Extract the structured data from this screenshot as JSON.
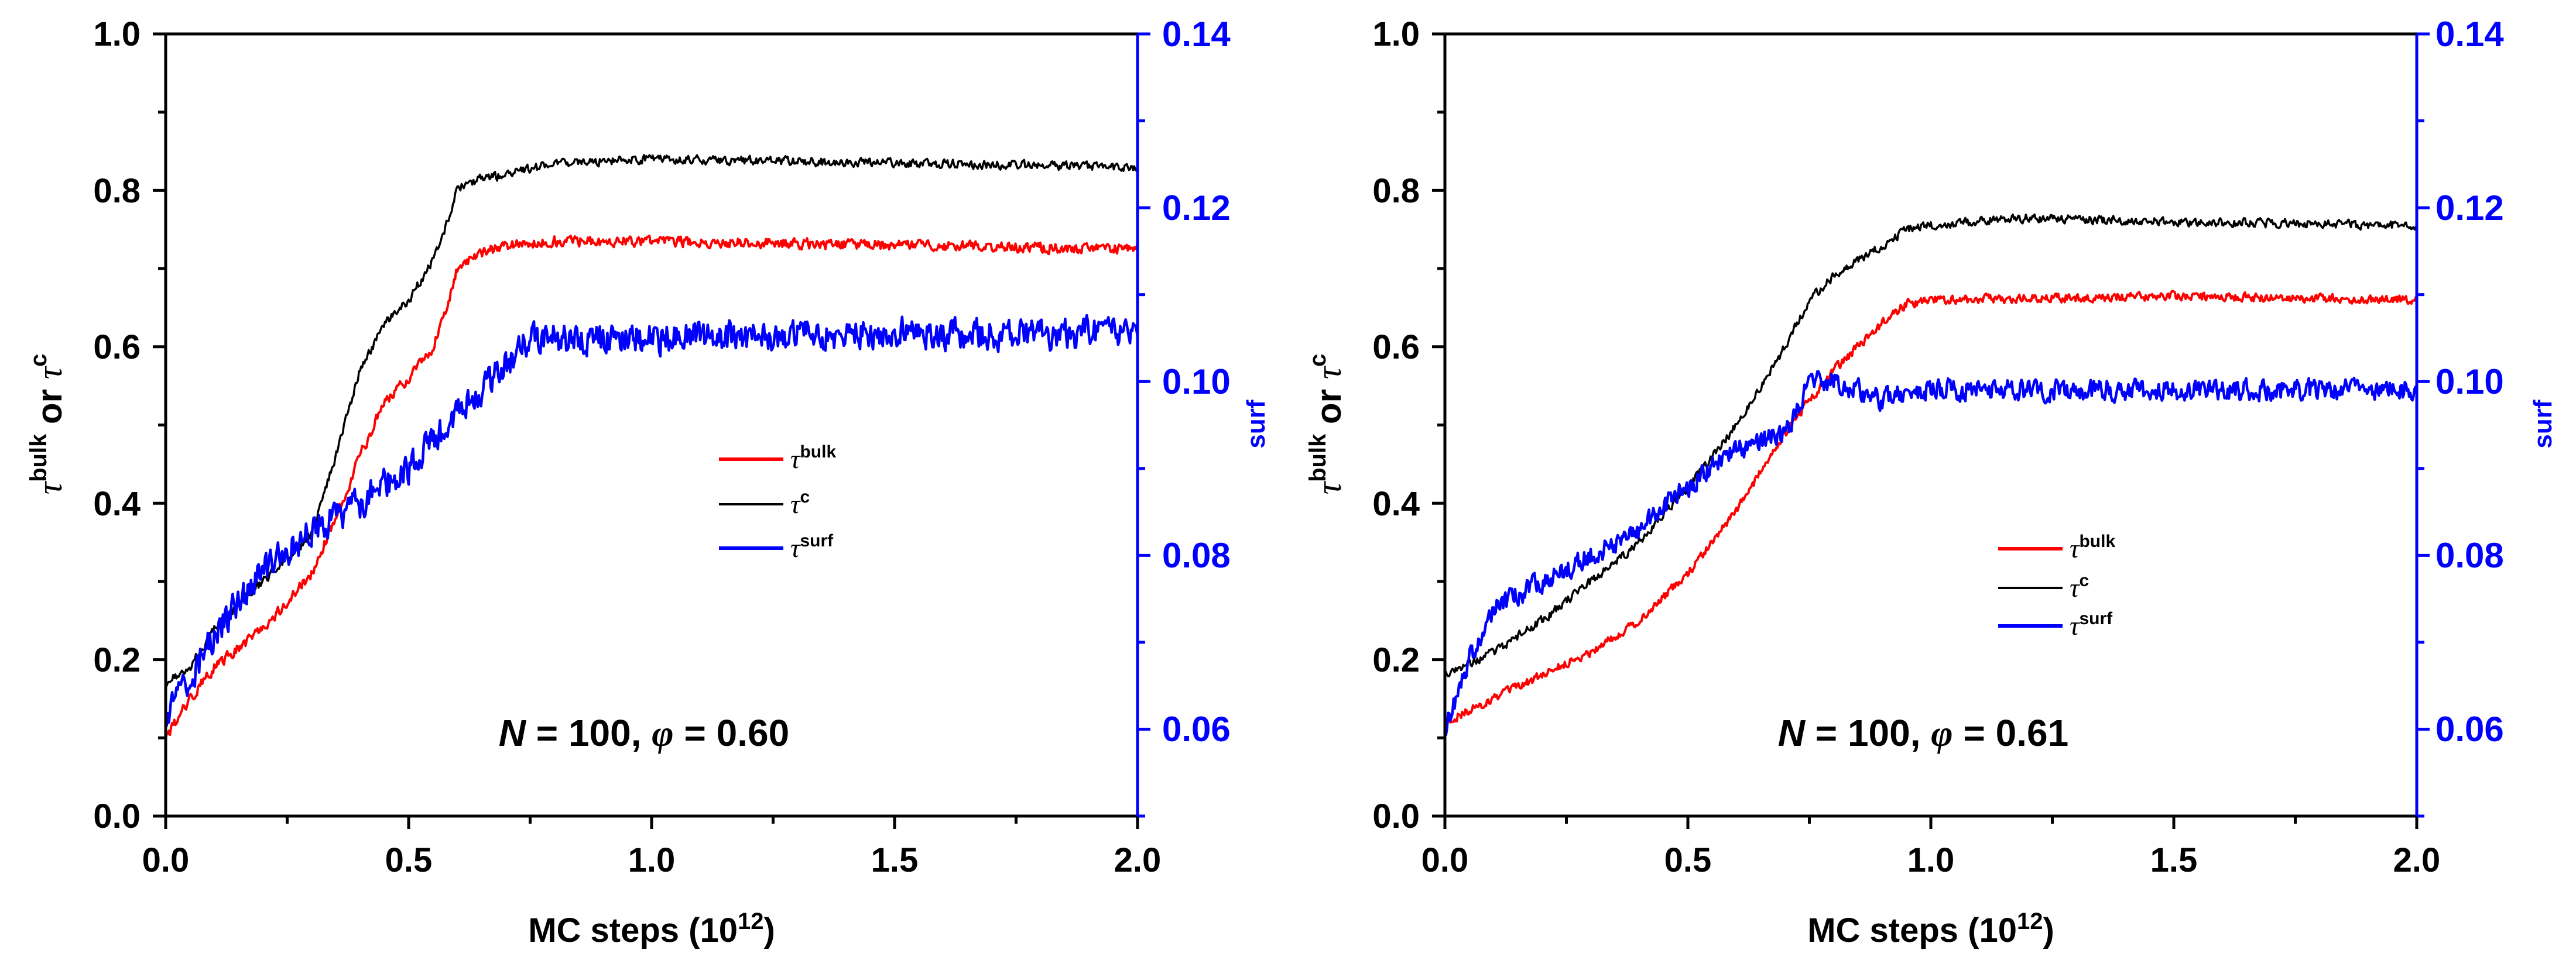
{
  "colors": {
    "bulk": "#ff0000",
    "c": "#000000",
    "surf": "#0000ff",
    "axis": "#000000",
    "right_axis": "#0000ff"
  },
  "chart_data": [
    {
      "type": "line",
      "xlabel": "MC steps (10",
      "xlabel_exp": "12",
      "xlabel_close": ")",
      "ylabel": {
        "tau": "τ",
        "bulk": "bulk",
        "or": "or",
        "c": "c"
      },
      "y2label": "surf",
      "xlim": [
        0,
        2.0
      ],
      "ylim": [
        0,
        1.0
      ],
      "y2lim": [
        0.05,
        0.14
      ],
      "xticks": [
        "0.0",
        "0.5",
        "1.0",
        "1.5",
        "2.0"
      ],
      "yticks": [
        "0.0",
        "0.2",
        "0.4",
        "0.6",
        "0.8",
        "1.0"
      ],
      "y2ticks": [
        "0.06",
        "0.08",
        "0.10",
        "0.12",
        "0.14"
      ],
      "annotation": {
        "N": "N",
        "eq1": " = 100, ",
        "phi": "φ",
        "eq2": " = 0.60"
      },
      "legend": [
        {
          "tau": "τ",
          "sup": "bulk",
          "series": "bulk"
        },
        {
          "tau": "τ",
          "sup": "c",
          "series": "c"
        },
        {
          "tau": "τ",
          "sup": "surf",
          "series": "surf"
        }
      ],
      "series": [
        {
          "name": "τ^bulk",
          "axis": "left",
          "x": [
            0,
            0.05,
            0.1,
            0.2,
            0.3,
            0.35,
            0.4,
            0.45,
            0.5,
            0.55,
            0.58,
            0.6,
            0.62,
            0.65,
            0.7,
            0.8,
            1.0,
            1.5,
            2.0
          ],
          "y": [
            0.1,
            0.15,
            0.19,
            0.24,
            0.31,
            0.38,
            0.46,
            0.53,
            0.56,
            0.6,
            0.65,
            0.7,
            0.71,
            0.72,
            0.73,
            0.735,
            0.735,
            0.73,
            0.725
          ],
          "noise": 0.006
        },
        {
          "name": "τ^c",
          "axis": "left",
          "x": [
            0,
            0.05,
            0.1,
            0.2,
            0.3,
            0.35,
            0.4,
            0.45,
            0.5,
            0.55,
            0.58,
            0.6,
            0.62,
            0.65,
            0.7,
            0.8,
            1.0,
            1.5,
            2.0
          ],
          "y": [
            0.17,
            0.19,
            0.24,
            0.3,
            0.36,
            0.46,
            0.57,
            0.63,
            0.66,
            0.71,
            0.76,
            0.8,
            0.81,
            0.815,
            0.82,
            0.835,
            0.84,
            0.835,
            0.83
          ],
          "noise": 0.005
        },
        {
          "name": "τ^surf",
          "axis": "right",
          "x": [
            0,
            0.05,
            0.1,
            0.2,
            0.3,
            0.4,
            0.5,
            0.6,
            0.7,
            0.75,
            0.8,
            0.9,
            1.0,
            1.5,
            2.0
          ],
          "y": [
            0.061,
            0.066,
            0.071,
            0.078,
            0.083,
            0.086,
            0.09,
            0.096,
            0.102,
            0.105,
            0.105,
            0.105,
            0.105,
            0.1055,
            0.1055
          ],
          "noise": 0.0016
        }
      ]
    },
    {
      "type": "line",
      "xlabel": "MC steps (10",
      "xlabel_exp": "12",
      "xlabel_close": ")",
      "ylabel": {
        "tau": "τ",
        "bulk": "bulk",
        "or": "or",
        "c": "c"
      },
      "y2label": "surf",
      "xlim": [
        0,
        2.0
      ],
      "ylim": [
        0,
        1.0
      ],
      "y2lim": [
        0.05,
        0.14
      ],
      "xticks": [
        "0.0",
        "0.5",
        "1.0",
        "1.5",
        "2.0"
      ],
      "yticks": [
        "0.0",
        "0.2",
        "0.4",
        "0.6",
        "0.8",
        "1.0"
      ],
      "y2ticks": [
        "0.06",
        "0.08",
        "0.10",
        "0.12",
        "0.14"
      ],
      "annotation": {
        "N": "N",
        "eq1": " = 100, ",
        "phi": "φ",
        "eq2": " = 0.61"
      },
      "legend": [
        {
          "tau": "τ",
          "sup": "bulk",
          "series": "bulk"
        },
        {
          "tau": "τ",
          "sup": "c",
          "series": "c"
        },
        {
          "tau": "τ",
          "sup": "surf",
          "series": "surf"
        }
      ],
      "series": [
        {
          "name": "τ^bulk",
          "axis": "left",
          "x": [
            0,
            0.1,
            0.2,
            0.3,
            0.4,
            0.5,
            0.6,
            0.7,
            0.8,
            0.9,
            0.95,
            1.0,
            1.5,
            2.0
          ],
          "y": [
            0.12,
            0.15,
            0.18,
            0.21,
            0.25,
            0.31,
            0.39,
            0.49,
            0.57,
            0.63,
            0.655,
            0.66,
            0.665,
            0.66
          ],
          "noise": 0.005
        },
        {
          "name": "τ^c",
          "axis": "left",
          "x": [
            0,
            0.1,
            0.2,
            0.3,
            0.4,
            0.5,
            0.6,
            0.7,
            0.75,
            0.8,
            0.9,
            0.95,
            1.0,
            1.2,
            1.5,
            2.0
          ],
          "y": [
            0.18,
            0.21,
            0.25,
            0.3,
            0.35,
            0.42,
            0.5,
            0.6,
            0.66,
            0.69,
            0.73,
            0.75,
            0.755,
            0.765,
            0.76,
            0.755
          ],
          "noise": 0.005
        },
        {
          "name": "τ^surf",
          "axis": "right",
          "x": [
            0,
            0.05,
            0.1,
            0.2,
            0.3,
            0.4,
            0.5,
            0.6,
            0.7,
            0.75,
            0.8,
            0.9,
            1.0,
            1.5,
            2.0
          ],
          "y": [
            0.06,
            0.068,
            0.074,
            0.077,
            0.08,
            0.083,
            0.088,
            0.092,
            0.094,
            0.1,
            0.1,
            0.098,
            0.099,
            0.099,
            0.099
          ],
          "noise": 0.0011
        }
      ]
    }
  ]
}
